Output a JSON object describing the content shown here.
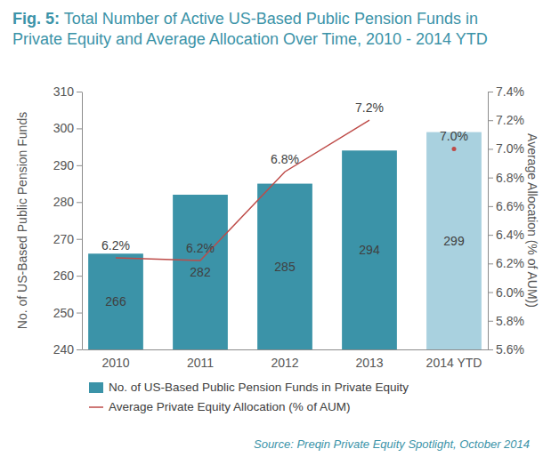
{
  "chart_data": {
    "type": "bar",
    "title": "Fig. 5: Total Number of Active US-Based Public Pension Funds in Private Equity and Average Allocation Over Time, 2010 - 2014 YTD",
    "source": "Source: Preqin Private Equity Spotlight, October 2014",
    "categories": [
      "2010",
      "2011",
      "2012",
      "2013",
      "2014 YTD"
    ],
    "y_label": "No. of US-Based Public Pension Funds",
    "y2_label": "Average Allocation (% of AUM))",
    "series": [
      {
        "name": "No. of US-Based Public Pension Funds in Private Equity",
        "type": "bar",
        "colors": [
          "#3b93a8",
          "#3b93a8",
          "#3b93a8",
          "#3b93a8",
          "#a9d1df"
        ],
        "values": [
          266,
          282,
          285,
          294,
          299
        ]
      },
      {
        "name": "Average Private Equity Allocation (% of AUM)",
        "type": "line",
        "axis": "y2",
        "color": "#be4b48",
        "line_style": "solid",
        "values": [
          6.24,
          6.22,
          6.84,
          7.2,
          null
        ],
        "value_labels": [
          "6.2%",
          "6.2%",
          "6.8%",
          "7.2%",
          null
        ]
      },
      {
        "type": "scatter",
        "axis": "y2",
        "marker": "dot",
        "color": "#be4b48",
        "values": [
          null,
          null,
          null,
          null,
          7.0
        ],
        "value_labels": [
          null,
          null,
          null,
          null,
          "7.0%"
        ]
      }
    ],
    "ylim": [
      240,
      310
    ],
    "yticks": [
      240,
      250,
      260,
      270,
      280,
      290,
      300,
      310
    ],
    "y2lim": [
      5.6,
      7.4
    ],
    "y2ticks": [
      {
        "value": 5.6,
        "label": "5.6%"
      },
      {
        "value": 5.8,
        "label": "5.8%"
      },
      {
        "value": 6.0,
        "label": "6.0%"
      },
      {
        "value": 6.2,
        "label": "6.2%"
      },
      {
        "value": 6.4,
        "label": "6.4%"
      },
      {
        "value": 6.6,
        "label": "6.6%"
      },
      {
        "value": 6.8,
        "label": "6.8%"
      },
      {
        "value": 7.0,
        "label": "7.0%"
      },
      {
        "value": 7.2,
        "label": "7.2%"
      },
      {
        "value": 7.4,
        "label": "7.4%"
      }
    ],
    "data_labels": true,
    "grid": false,
    "legend": "bottom"
  }
}
